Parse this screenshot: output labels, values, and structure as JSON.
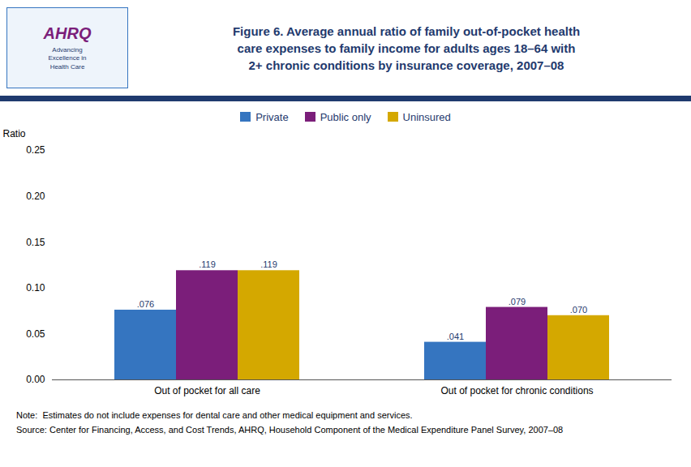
{
  "chart_data": {
    "type": "bar",
    "title": "Figure 6. Average annual ratio of family out-of-pocket health\ncare expenses to family income for adults ages 18–64 with\n2+ chronic conditions by insurance coverage, 2007–08",
    "annotations": [
      "AHRQ",
      "Advancing\nExcellence in\nHealth Care"
    ],
    "notes": [
      "Note:  Estimates do not include expenses for dental care and other medical equipment and services.",
      "Source: Center for Financing, Access, and Cost Trends, AHRQ, Household Component of the Medical Expenditure Panel Survey, 2007–08"
    ],
    "categories": [
      "Out of pocket for all care",
      "Out of pocket for chronic conditions"
    ],
    "series": [
      {
        "name": "Private",
        "color": "#3575C0",
        "values": [
          0.076,
          0.041
        ],
        "value_labels": [
          ".076",
          ".041"
        ]
      },
      {
        "name": "Public only",
        "color": "#7B1E7A",
        "values": [
          0.119,
          0.079
        ],
        "value_labels": [
          ".119",
          ".079"
        ]
      },
      {
        "name": "Uninsured",
        "color": "#D4A800",
        "values": [
          0.119,
          0.07
        ],
        "value_labels": [
          ".119",
          ".070"
        ]
      }
    ],
    "ylabel": "Ratio",
    "ylim": [
      0,
      0.25
    ],
    "yticks": [
      {
        "value": 0,
        "label": "0.00"
      },
      0.05,
      {
        "value": 0.1,
        "label": "0.10"
      },
      0.15,
      {
        "value": 0.2,
        "label": "0.20"
      },
      0.25
    ],
    "data_labels": true,
    "legend": "top",
    "grid": false
  }
}
